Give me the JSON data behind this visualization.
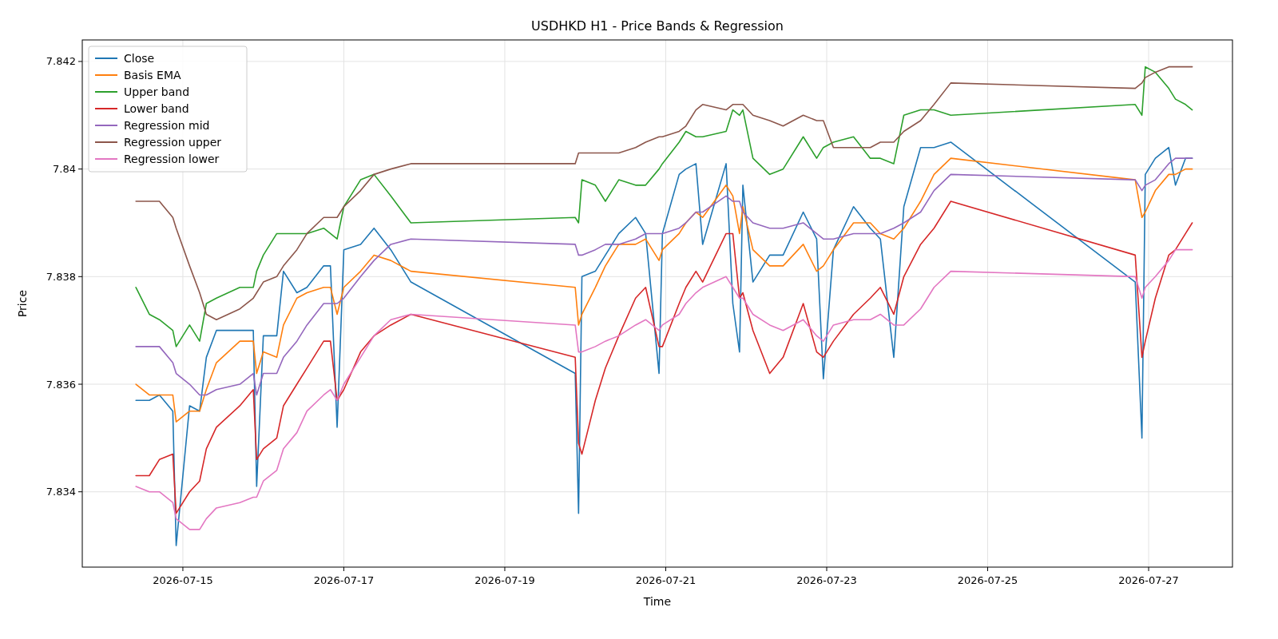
{
  "chart_data": {
    "type": "line",
    "title": "USDHKD H1 - Price Bands & Regression",
    "xlabel": "Time",
    "ylabel": "Price",
    "x": [
      "2026-07-14T10:00",
      "2026-07-14T14:00",
      "2026-07-14T17:00",
      "2026-07-14T21:00",
      "2026-07-14T22:00",
      "2026-07-15T02:00",
      "2026-07-15T05:00",
      "2026-07-15T07:00",
      "2026-07-15T10:00",
      "2026-07-15T17:00",
      "2026-07-15T21:00",
      "2026-07-15T22:00",
      "2026-07-16T00:00",
      "2026-07-16T04:00",
      "2026-07-16T06:00",
      "2026-07-16T10:00",
      "2026-07-16T13:00",
      "2026-07-16T18:00",
      "2026-07-16T20:00",
      "2026-07-16T22:00",
      "2026-07-17T00:00",
      "2026-07-17T05:00",
      "2026-07-17T09:00",
      "2026-07-17T14:00",
      "2026-07-17T20:00",
      "2026-07-19T21:00",
      "2026-07-19T22:00",
      "2026-07-19T23:00",
      "2026-07-20T03:00",
      "2026-07-20T06:00",
      "2026-07-20T10:00",
      "2026-07-20T15:00",
      "2026-07-20T18:00",
      "2026-07-20T22:00",
      "2026-07-20T23:00",
      "2026-07-21T04:00",
      "2026-07-21T06:00",
      "2026-07-21T09:00",
      "2026-07-21T11:00",
      "2026-07-21T18:00",
      "2026-07-21T20:00",
      "2026-07-21T22:00",
      "2026-07-21T23:00",
      "2026-07-22T02:00",
      "2026-07-22T07:00",
      "2026-07-22T11:00",
      "2026-07-22T17:00",
      "2026-07-22T21:00",
      "2026-07-22T23:00",
      "2026-07-23T02:00",
      "2026-07-23T08:00",
      "2026-07-23T13:00",
      "2026-07-23T16:00",
      "2026-07-23T20:00",
      "2026-07-23T23:00",
      "2026-07-24T04:00",
      "2026-07-24T08:00",
      "2026-07-24T13:00",
      "2026-07-26T20:00",
      "2026-07-26T22:00",
      "2026-07-26T23:00",
      "2026-07-27T02:00",
      "2026-07-27T06:00",
      "2026-07-27T08:00",
      "2026-07-27T11:00",
      "2026-07-27T13:00"
    ],
    "series": [
      {
        "name": "Close",
        "color": "#1f77b4",
        "values": [
          7.8357,
          7.8357,
          7.8358,
          7.8355,
          7.833,
          7.8356,
          7.8355,
          7.8365,
          7.837,
          7.837,
          7.837,
          7.8341,
          7.8369,
          7.8369,
          7.8381,
          7.8377,
          7.8378,
          7.8382,
          7.8382,
          7.8352,
          7.8385,
          7.8386,
          7.8389,
          7.8385,
          7.8379,
          7.8362,
          7.8336,
          7.838,
          7.8381,
          7.8384,
          7.8388,
          7.8391,
          7.8388,
          7.8362,
          7.8388,
          7.8399,
          7.84,
          7.8401,
          7.8386,
          7.8401,
          7.8375,
          7.8366,
          7.8397,
          7.8379,
          7.8384,
          7.8384,
          7.8392,
          7.8387,
          7.8361,
          7.8385,
          7.8393,
          7.8389,
          7.8387,
          7.8365,
          7.8393,
          7.8404,
          7.8404,
          7.8405,
          7.8379,
          7.835,
          7.8399,
          7.8402,
          7.8404,
          7.8397,
          7.8402,
          7.8402
        ]
      },
      {
        "name": "Basis EMA",
        "color": "#ff7f0e",
        "values": [
          7.836,
          7.8358,
          7.8358,
          7.8358,
          7.8353,
          7.8355,
          7.8355,
          7.8359,
          7.8364,
          7.8368,
          7.8368,
          7.8362,
          7.8366,
          7.8365,
          7.8371,
          7.8376,
          7.8377,
          7.8378,
          7.8378,
          7.8373,
          7.8378,
          7.8381,
          7.8384,
          7.8383,
          7.8381,
          7.8378,
          7.8371,
          7.8373,
          7.8378,
          7.8382,
          7.8386,
          7.8386,
          7.8387,
          7.8383,
          7.8385,
          7.8388,
          7.839,
          7.8392,
          7.8391,
          7.8397,
          7.8395,
          7.8388,
          7.8393,
          7.8385,
          7.8382,
          7.8382,
          7.8386,
          7.8381,
          7.8382,
          7.8385,
          7.839,
          7.839,
          7.8388,
          7.8387,
          7.8389,
          7.8394,
          7.8399,
          7.8402,
          7.8398,
          7.8391,
          7.8392,
          7.8396,
          7.8399,
          7.8399,
          7.84,
          7.84
        ]
      },
      {
        "name": "Upper band",
        "color": "#2ca02c",
        "values": [
          7.8378,
          7.8373,
          7.8372,
          7.837,
          7.8367,
          7.8371,
          7.8368,
          7.8375,
          7.8376,
          7.8378,
          7.8378,
          7.8381,
          7.8384,
          7.8388,
          7.8388,
          7.8388,
          7.8388,
          7.8389,
          7.8388,
          7.8387,
          7.8393,
          7.8398,
          7.8399,
          7.8395,
          7.839,
          7.8391,
          7.839,
          7.8398,
          7.8397,
          7.8394,
          7.8398,
          7.8397,
          7.8397,
          7.84,
          7.8401,
          7.8405,
          7.8407,
          7.8406,
          7.8406,
          7.8407,
          7.8411,
          7.841,
          7.8411,
          7.8402,
          7.8399,
          7.84,
          7.8406,
          7.8402,
          7.8404,
          7.8405,
          7.8406,
          7.8402,
          7.8402,
          7.8401,
          7.841,
          7.8411,
          7.8411,
          7.841,
          7.8412,
          7.841,
          7.8419,
          7.8418,
          7.8415,
          7.8413,
          7.8412,
          7.8411
        ]
      },
      {
        "name": "Lower band",
        "color": "#d62728",
        "values": [
          7.8343,
          7.8343,
          7.8346,
          7.8347,
          7.8336,
          7.834,
          7.8342,
          7.8348,
          7.8352,
          7.8356,
          7.8359,
          7.8346,
          7.8348,
          7.835,
          7.8356,
          7.836,
          7.8363,
          7.8368,
          7.8368,
          7.8357,
          7.8359,
          7.8366,
          7.8369,
          7.8371,
          7.8373,
          7.8365,
          7.8349,
          7.8347,
          7.8357,
          7.8363,
          7.8369,
          7.8376,
          7.8378,
          7.8367,
          7.8367,
          7.8375,
          7.8378,
          7.8381,
          7.8379,
          7.8388,
          7.8388,
          7.8376,
          7.8377,
          7.837,
          7.8362,
          7.8365,
          7.8375,
          7.8366,
          7.8365,
          7.8368,
          7.8373,
          7.8376,
          7.8378,
          7.8373,
          7.838,
          7.8386,
          7.8389,
          7.8394,
          7.8384,
          7.8365,
          7.8368,
          7.8376,
          7.8384,
          7.8385,
          7.8388,
          7.839
        ]
      },
      {
        "name": "Regression mid",
        "color": "#9467bd",
        "values": [
          7.8367,
          7.8367,
          7.8367,
          7.8364,
          7.8362,
          7.836,
          7.8358,
          7.8358,
          7.8359,
          7.836,
          7.8362,
          7.8358,
          7.8362,
          7.8362,
          7.8365,
          7.8368,
          7.8371,
          7.8375,
          7.8375,
          7.8375,
          7.8376,
          7.838,
          7.8383,
          7.8386,
          7.8387,
          7.8386,
          7.8384,
          7.8384,
          7.8385,
          7.8386,
          7.8386,
          7.8387,
          7.8388,
          7.8388,
          7.8388,
          7.8389,
          7.839,
          7.8392,
          7.8392,
          7.8395,
          7.8394,
          7.8394,
          7.8392,
          7.839,
          7.8389,
          7.8389,
          7.839,
          7.8388,
          7.8387,
          7.8387,
          7.8388,
          7.8388,
          7.8388,
          7.8389,
          7.839,
          7.8392,
          7.8396,
          7.8399,
          7.8398,
          7.8396,
          7.8397,
          7.8398,
          7.8401,
          7.8402,
          7.8402,
          7.8402
        ]
      },
      {
        "name": "Regression upper",
        "color": "#8c564b",
        "values": [
          7.8394,
          7.8394,
          7.8394,
          7.8391,
          7.8389,
          7.8382,
          7.8377,
          7.8373,
          7.8372,
          7.8374,
          7.8376,
          7.8377,
          7.8379,
          7.838,
          7.8382,
          7.8385,
          7.8388,
          7.8391,
          7.8391,
          7.8391,
          7.8393,
          7.8396,
          7.8399,
          7.84,
          7.8401,
          7.8401,
          7.8403,
          7.8403,
          7.8403,
          7.8403,
          7.8403,
          7.8404,
          7.8405,
          7.8406,
          7.8406,
          7.8407,
          7.8408,
          7.8411,
          7.8412,
          7.8411,
          7.8412,
          7.8412,
          7.8412,
          7.841,
          7.8409,
          7.8408,
          7.841,
          7.8409,
          7.8409,
          7.8404,
          7.8404,
          7.8404,
          7.8405,
          7.8405,
          7.8407,
          7.8409,
          7.8412,
          7.8416,
          7.8415,
          7.8416,
          7.8417,
          7.8418,
          7.8419,
          7.8419,
          7.8419,
          7.8419
        ]
      },
      {
        "name": "Regression lower",
        "color": "#e377c2",
        "values": [
          7.8341,
          7.834,
          7.834,
          7.8338,
          7.8335,
          7.8333,
          7.8333,
          7.8335,
          7.8337,
          7.8338,
          7.8339,
          7.8339,
          7.8342,
          7.8344,
          7.8348,
          7.8351,
          7.8355,
          7.8358,
          7.8359,
          7.8357,
          7.836,
          7.8365,
          7.8369,
          7.8372,
          7.8373,
          7.8371,
          7.8366,
          7.8366,
          7.8367,
          7.8368,
          7.8369,
          7.8371,
          7.8372,
          7.837,
          7.8371,
          7.8373,
          7.8375,
          7.8377,
          7.8378,
          7.838,
          7.8378,
          7.8376,
          7.8376,
          7.8373,
          7.8371,
          7.837,
          7.8372,
          7.8369,
          7.8368,
          7.8371,
          7.8372,
          7.8372,
          7.8373,
          7.8371,
          7.8371,
          7.8374,
          7.8378,
          7.8381,
          7.838,
          7.8376,
          7.8378,
          7.838,
          7.8383,
          7.8385,
          7.8385,
          7.8385
        ]
      }
    ],
    "xlim": [
      "2026-07-13T18:00",
      "2026-07-28T01:00"
    ],
    "xticks": [
      {
        "value": "2026-07-15",
        "label": "2026-07-15"
      },
      {
        "value": "2026-07-17",
        "label": "2026-07-17"
      },
      {
        "value": "2026-07-19",
        "label": "2026-07-19"
      },
      {
        "value": "2026-07-21",
        "label": "2026-07-21"
      },
      {
        "value": "2026-07-23",
        "label": "2026-07-23"
      },
      {
        "value": "2026-07-25",
        "label": "2026-07-25"
      },
      {
        "value": "2026-07-27",
        "label": "2026-07-27"
      }
    ],
    "ylim": [
      7.8326,
      7.8424
    ],
    "yticks": [
      7.834,
      7.836,
      7.838,
      7.84,
      7.842
    ],
    "grid": true,
    "legend": "top left",
    "line_style": "solid"
  }
}
